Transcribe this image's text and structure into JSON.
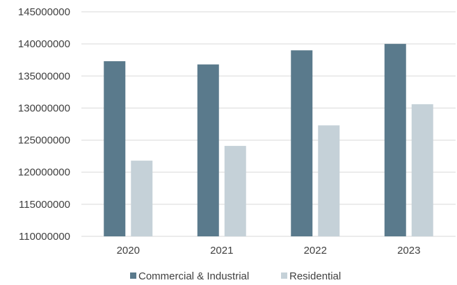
{
  "chart_data": {
    "type": "bar",
    "categories": [
      "2020",
      "2021",
      "2022",
      "2023"
    ],
    "series": [
      {
        "name": "Commercial & Industrial",
        "color": "#5a7a8c",
        "values": [
          137300000,
          136800000,
          139000000,
          140000000
        ]
      },
      {
        "name": "Residential",
        "color": "#c5d1d8",
        "values": [
          121800000,
          124100000,
          127300000,
          130600000
        ]
      }
    ],
    "yticks": [
      "110000000",
      "115000000",
      "120000000",
      "125000000",
      "130000000",
      "135000000",
      "140000000",
      "145000000"
    ],
    "ylim": [
      110000000,
      145000000
    ],
    "grid": true,
    "legend_position": "bottom",
    "gridline_color": "#d9d9d9",
    "text_color": "#404040"
  }
}
